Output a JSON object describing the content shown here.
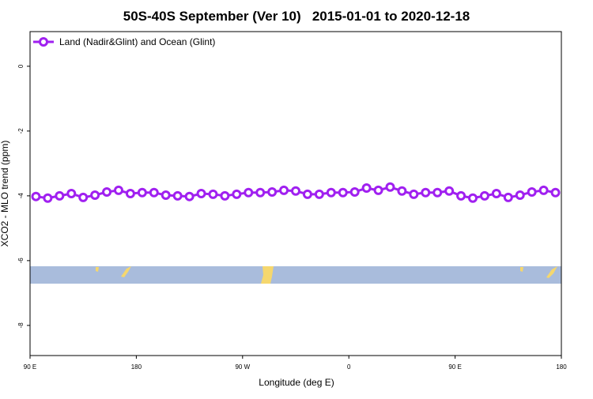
{
  "chart_data": {
    "type": "line",
    "title": "50S-40S September (Ver 10)   2015-01-01 to 2020-12-18",
    "xlabel": "Longitude (deg E)",
    "ylabel": "XCO2 - MLO trend (ppm)",
    "x": [
      95,
      105,
      115,
      125,
      135,
      145,
      155,
      165,
      175,
      185,
      195,
      205,
      215,
      225,
      235,
      245,
      255,
      265,
      275,
      285,
      295,
      305,
      315,
      325,
      335,
      345,
      355,
      365,
      375,
      385,
      395,
      405,
      415,
      425,
      435,
      445,
      455,
      465,
      475,
      485,
      495,
      505,
      515,
      525,
      535
    ],
    "series": [
      {
        "name": "Land (Nadir&Glint) and Ocean (Glint)",
        "color": "#a020f0",
        "values": [
          -4.02,
          -4.07,
          -4.0,
          -3.93,
          -4.05,
          -3.98,
          -3.88,
          -3.83,
          -3.93,
          -3.9,
          -3.9,
          -3.98,
          -4.0,
          -4.02,
          -3.93,
          -3.95,
          -4.0,
          -3.95,
          -3.9,
          -3.9,
          -3.88,
          -3.83,
          -3.85,
          -3.95,
          -3.95,
          -3.9,
          -3.9,
          -3.88,
          -3.76,
          -3.83,
          -3.73,
          -3.85,
          -3.95,
          -3.9,
          -3.9,
          -3.85,
          -4.0,
          -4.07,
          -4.0,
          -3.93,
          -4.05,
          -3.98,
          -3.88,
          -3.83,
          -3.9
        ]
      }
    ],
    "xlim": [
      90,
      540
    ],
    "xticks": [
      {
        "value": 90,
        "label": "90 E"
      },
      {
        "value": 180,
        "label": "180"
      },
      {
        "value": 270,
        "label": "90 W"
      },
      {
        "value": 360,
        "label": "0"
      },
      {
        "value": 450,
        "label": "90 E"
      },
      {
        "value": 540,
        "label": "180"
      }
    ],
    "ylim": [
      -8.93,
      1.07
    ],
    "yticks": [
      0,
      -2,
      -4,
      -6,
      -8
    ],
    "legend": "upper left"
  }
}
